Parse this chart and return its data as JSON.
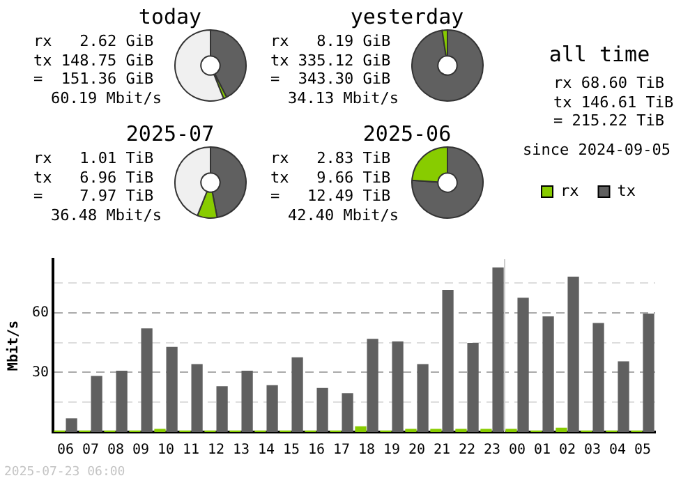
{
  "chart_data": [
    {
      "type": "donut",
      "title": "today",
      "categories": [
        null,
        null,
        null
      ],
      "values": [
        42.5,
        1.5,
        56
      ],
      "colors": [
        "#606060",
        "#88cc00",
        "#f0f0f0"
      ],
      "annotations": [
        "rx 2.62 GiB",
        "tx 148.75 GiB",
        "= 151.36 GiB",
        "60.19 Mbit/s"
      ]
    },
    {
      "type": "donut",
      "title": "yesterday",
      "categories": [
        null,
        null
      ],
      "values": [
        97.6,
        2.4
      ],
      "colors": [
        "#606060",
        "#88cc00"
      ],
      "annotations": [
        "rx 8.19 GiB",
        "tx 335.12 GiB",
        "= 343.30 GiB",
        "34.13 Mbit/s"
      ]
    },
    {
      "type": "other",
      "title": "all time",
      "annotations": [
        "rx 68.60 TiB",
        "tx 146.61 TiB",
        "= 215.22 TiB",
        "since 2024-09-05"
      ]
    },
    {
      "type": "donut",
      "title": "2025-07",
      "categories": [
        null,
        null,
        null
      ],
      "values": [
        47,
        9,
        44
      ],
      "colors": [
        "#606060",
        "#88cc00",
        "#f0f0f0"
      ],
      "annotations": [
        "rx 1.01 TiB",
        "tx 6.96 TiB",
        "= 7.97 TiB",
        "36.48 Mbit/s"
      ]
    },
    {
      "type": "donut",
      "title": "2025-06",
      "categories": [
        null,
        null
      ],
      "values": [
        76,
        24
      ],
      "colors": [
        "#606060",
        "#88cc00"
      ],
      "annotations": [
        "rx 2.83 TiB",
        "tx 9.66 TiB",
        "= 12.49 TiB",
        "42.40 Mbit/s"
      ]
    },
    {
      "type": "bar",
      "ylabel": "Mbit/s",
      "categories": [
        "06",
        "07",
        "08",
        "09",
        "10",
        "11",
        "12",
        "13",
        "14",
        "15",
        "16",
        "17",
        "18",
        "19",
        "20",
        "21",
        "22",
        "23",
        "00",
        "01",
        "02",
        "03",
        "04",
        "05"
      ],
      "series": [
        {
          "name": "rx",
          "color": "#88cc00",
          "values": [
            0.8,
            0.8,
            0.8,
            0.8,
            1.6,
            0.8,
            0.8,
            0.8,
            0.8,
            0.8,
            0.8,
            0.8,
            2.9,
            0.8,
            1.6,
            1.6,
            1.6,
            1.6,
            1.6,
            0.8,
            2.2,
            0.8,
            0.8,
            0.8
          ]
        },
        {
          "name": "tx",
          "color": "#606060",
          "values": [
            6.9,
            28.2,
            30.9,
            52.2,
            42.9,
            34.2,
            23.1,
            30.9,
            23.6,
            37.6,
            22.2,
            19.6,
            46.9,
            45.6,
            34.2,
            71.6,
            44.9,
            82.9,
            67.6,
            58.2,
            78.2,
            54.9,
            35.6,
            59.6
          ]
        }
      ],
      "ylim": [
        0,
        87
      ],
      "yticks": [
        {
          "value": 15,
          "label": null
        },
        30,
        {
          "value": 45,
          "label": null
        },
        60,
        {
          "value": 75,
          "label": null
        }
      ],
      "grid": "y",
      "legend": "top right",
      "ref_lines": [
        {
          "axis": "x",
          "value": "00",
          "color": "#cccccc"
        }
      ],
      "annotations": [
        "2025-07-23 06:00"
      ]
    }
  ]
}
